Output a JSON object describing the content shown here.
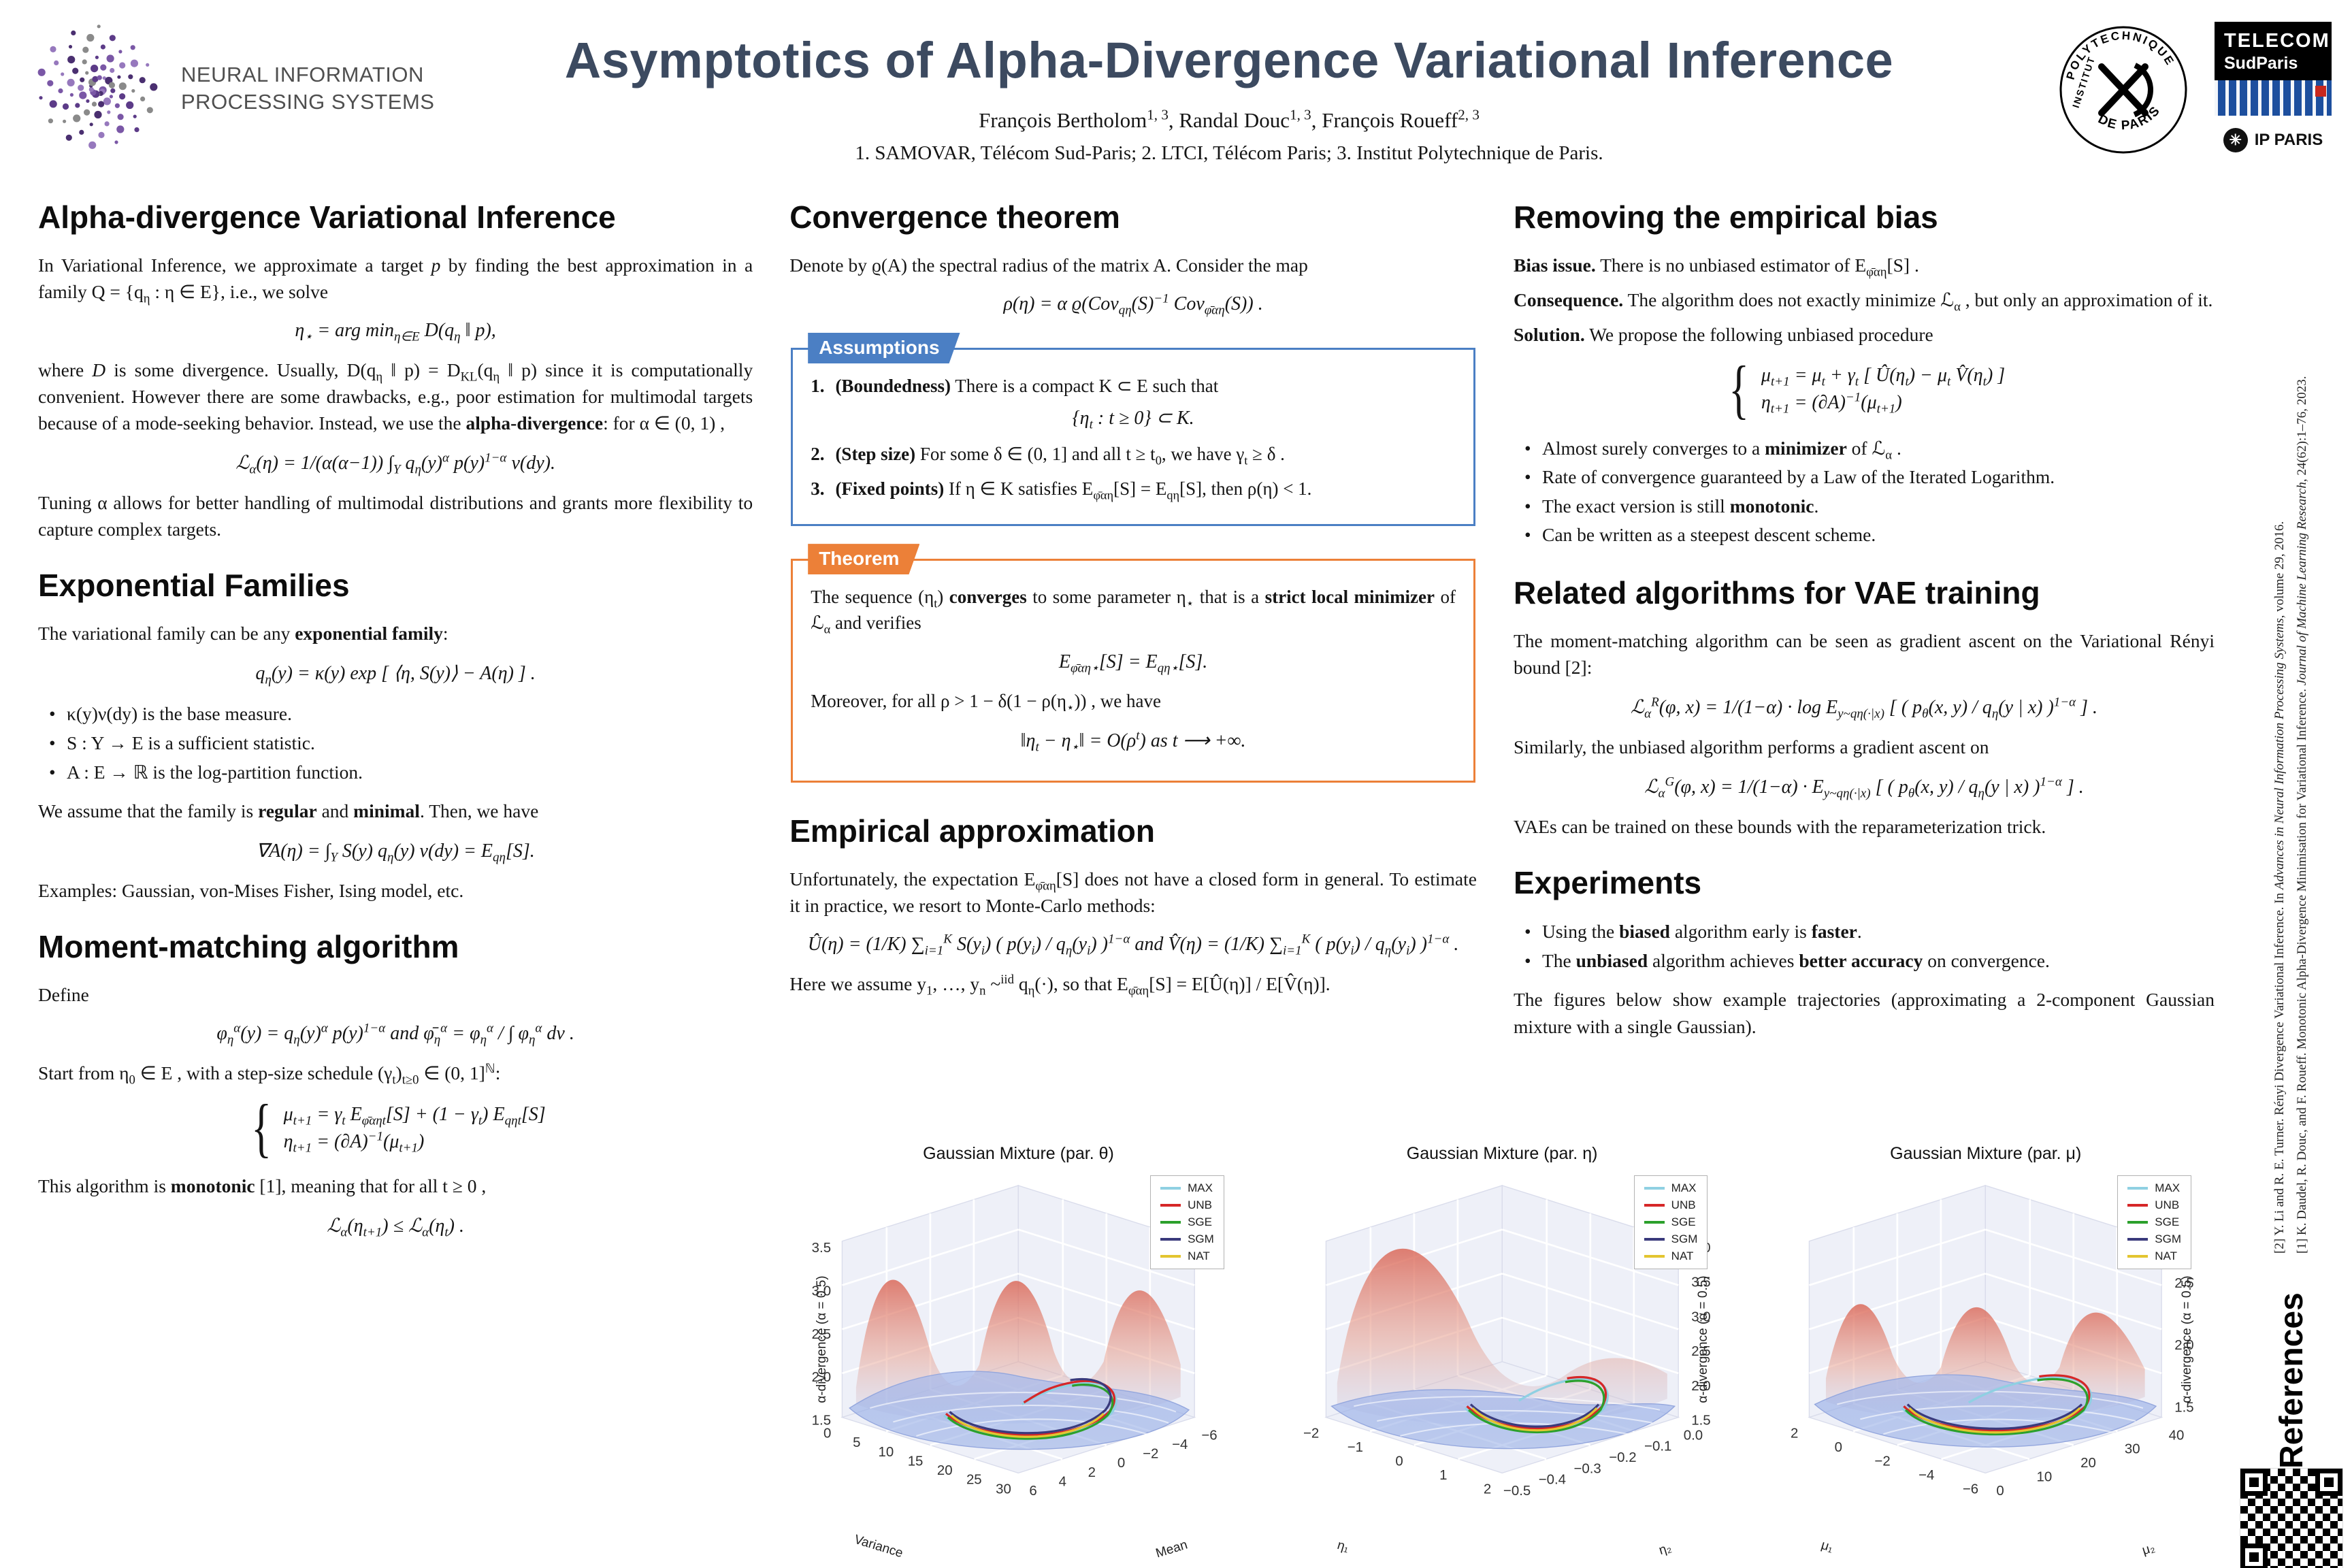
{
  "header": {
    "title": "Asymptotics of Alpha-Divergence Variational Inference",
    "authors": [
      "François Bertholom",
      {
        "t": "1, 3",
        "p": true
      },
      ", Randal Douc",
      {
        "t": "1, 3",
        "p": true
      },
      ", François Roueff",
      {
        "t": "2, 3",
        "p": true
      }
    ],
    "affiliations": "1. SAMOVAR, Télécom Sud-Paris; 2. LTCI, Télécom Paris; 3. Institut Polytechnique de Paris.",
    "neurips": {
      "line1": "NEURAL INFORMATION",
      "line2": "PROCESSING SYSTEMS"
    },
    "poly": {
      "arc": "POLYTECHNIQUE",
      "left": "INSTITUT",
      "bottom": "DE PARIS"
    },
    "telecom": {
      "line1": "TELECOM",
      "line2": "SudParis"
    },
    "ipparis": "IP PARIS",
    "ip_icon_glyph": "✳"
  },
  "col1": {
    "s1": {
      "h": "Alpha-divergence Variational Inference",
      "p1": [
        "In Variational Inference, we approximate a target ",
        {
          "t": "p",
          "i": true
        },
        " by finding the best approximation in a family Q = {q",
        {
          "t": "η",
          "s": true
        },
        " : η ∈ E}, i.e., we solve"
      ],
      "eq1": [
        "η",
        {
          "t": "⋆",
          "s": true
        },
        " = arg min",
        {
          "t": "η∈E",
          "s": true
        },
        " D(q",
        {
          "t": "η",
          "s": true
        },
        " ‖ p),"
      ],
      "p2": [
        "where ",
        {
          "t": "D",
          "i": true
        },
        " is some divergence. Usually,  D(q",
        {
          "t": "η",
          "s": true
        },
        " ‖ p) = D",
        {
          "t": "KL",
          "s": true
        },
        "(q",
        {
          "t": "η",
          "s": true
        },
        " ‖ p)  since it is computationally convenient. However there are some drawbacks, e.g., poor estimation for multimodal targets because of a mode-seeking behavior. Instead, we use the ",
        {
          "t": "alpha-divergence",
          "b": true
        },
        ": for α ∈ (0, 1) ,"
      ],
      "eq2": [
        "ℒ",
        {
          "t": "α",
          "s": true
        },
        "(η) = 1/(α(α−1)) ∫",
        {
          "t": "Y",
          "s": true
        },
        " q",
        {
          "t": "η",
          "s": true
        },
        "(y)",
        {
          "t": "α",
          "p": true
        },
        " p(y)",
        {
          "t": "1−α",
          "p": true
        },
        " ν(dy)."
      ],
      "p3": "Tuning α allows for better handling of multimodal distributions and grants more flexibility to capture complex targets."
    },
    "s2": {
      "h": "Exponential Families",
      "p1": [
        "The variational family can be any ",
        {
          "t": "exponential family",
          "b": true
        },
        ":"
      ],
      "eq1": [
        "q",
        {
          "t": "η",
          "s": true
        },
        "(y) = κ(y) exp [ ⟨η, S(y)⟩ − A(η) ] ."
      ],
      "b1": [
        "κ(y)ν(dy) is the base measure."
      ],
      "b2": [
        "S : Y → E  is a sufficient statistic."
      ],
      "b3": [
        "A : E → ℝ  is the log-partition function."
      ],
      "p2": [
        "We assume that the family is ",
        {
          "t": "regular",
          "b": true
        },
        " and ",
        {
          "t": "minimal",
          "b": true
        },
        ". Then, we have"
      ],
      "eq2": [
        "∇A(η) = ∫",
        {
          "t": "Y",
          "s": true
        },
        " S(y) q",
        {
          "t": "η",
          "s": true
        },
        "(y) ν(dy) = E",
        {
          "t": "qη",
          "s": true
        },
        "[S]."
      ],
      "p3": "Examples: Gaussian, von-Mises Fisher, Ising model, etc."
    },
    "s3": {
      "h": "Moment-matching algorithm",
      "p1": "Define",
      "eq1": [
        "φ",
        {
          "t": "η",
          "s": true
        },
        {
          "t": "α",
          "p": true
        },
        "(y) = q",
        {
          "t": "η",
          "s": true
        },
        "(y)",
        {
          "t": "α",
          "p": true
        },
        " p(y)",
        {
          "t": "1−α",
          "p": true
        },
        "      and      φ̄",
        {
          "t": "η",
          "s": true
        },
        {
          "t": "α",
          "p": true
        },
        " = φ",
        {
          "t": "η",
          "s": true
        },
        {
          "t": "α",
          "p": true
        },
        " / ∫ φ",
        {
          "t": "η",
          "s": true
        },
        {
          "t": "α",
          "p": true
        },
        " dν ."
      ],
      "p2": [
        "Start from η",
        {
          "t": "0",
          "s": true
        },
        " ∈ E , with a step-size schedule (γ",
        {
          "t": "t",
          "s": true
        },
        ")",
        {
          "t": "t≥0",
          "s": true
        },
        " ∈ (0, 1]",
        {
          "t": "ℕ",
          "p": true
        },
        ":"
      ],
      "eq2a": [
        "μ",
        {
          "t": "t+1",
          "s": true
        },
        "  = γ",
        {
          "t": "t",
          "s": true
        },
        " E",
        {
          "t": "φ̄αηt",
          "s": true
        },
        "[S] + (1 − γ",
        {
          "t": "t",
          "s": true
        },
        ") E",
        {
          "t": "qηt",
          "s": true
        },
        "[S]"
      ],
      "eq2b": [
        "η",
        {
          "t": "t+1",
          "s": true
        },
        "  = (∂A)",
        {
          "t": "−1",
          "p": true
        },
        "(μ",
        {
          "t": "t+1",
          "s": true
        },
        ")"
      ],
      "p3": [
        "This algorithm is ",
        {
          "t": "monotonic",
          "b": true
        },
        " [1], meaning that for all t ≥ 0 ,"
      ],
      "eq3": [
        "ℒ",
        {
          "t": "α",
          "s": true
        },
        "(η",
        {
          "t": "t+1",
          "s": true
        },
        ") ≤ ℒ",
        {
          "t": "α",
          "s": true
        },
        "(η",
        {
          "t": "t",
          "s": true
        },
        ") ."
      ]
    }
  },
  "col2": {
    "s1": {
      "h": "Convergence theorem",
      "p1": [
        "Denote by ϱ(A) the spectral radius of the matrix A. Consider the map"
      ],
      "eq1": [
        "ρ(η) = α ϱ(Cov",
        {
          "t": "qη",
          "s": true
        },
        "(S)",
        {
          "t": "−1",
          "p": true
        },
        " Cov",
        {
          "t": "φ̄αη",
          "s": true
        },
        "(S)) ."
      ]
    },
    "assump": {
      "label": "Assumptions",
      "items": [
        {
          "num": "1.",
          "body": [
            {
              "t": "(Boundedness)",
              "b": true
            },
            " There is a compact  K ⊂ E  such that"
          ],
          "eq": [
            "{η",
            {
              "t": "t",
              "s": true
            },
            " :  t ≥ 0} ⊂ K."
          ]
        },
        {
          "num": "2.",
          "body": [
            {
              "t": "(Step size)",
              "b": true
            },
            " For some δ ∈ (0, 1] and all t ≥ t",
            {
              "t": "0",
              "s": true
            },
            ", we have γ",
            {
              "t": "t",
              "s": true
            },
            " ≥ δ ."
          ]
        },
        {
          "num": "3.",
          "body": [
            {
              "t": "(Fixed points)",
              "b": true
            },
            " If  η ∈ K  satisfies E",
            {
              "t": "φ̄αη",
              "s": true
            },
            "[S] = E",
            {
              "t": "qη",
              "s": true
            },
            "[S], then ρ(η) < 1."
          ]
        }
      ]
    },
    "thm": {
      "label": "Theorem",
      "p1": [
        "The sequence (η",
        {
          "t": "t",
          "s": true
        },
        ") ",
        {
          "t": "converges",
          "b": true
        },
        " to some parameter η",
        {
          "t": "⋆",
          "s": true
        },
        "  that is a ",
        {
          "t": "strict local minimizer",
          "b": true
        },
        " of ℒ",
        {
          "t": "α",
          "s": true
        },
        "  and verifies"
      ],
      "eq1": [
        "E",
        {
          "t": "φ̄αη⋆",
          "s": true
        },
        "[S] = E",
        {
          "t": "qη⋆",
          "s": true
        },
        "[S]."
      ],
      "p2": [
        "Moreover, for all ρ > 1 − δ(1 − ρ(η",
        {
          "t": "⋆",
          "s": true
        },
        ")) , we have"
      ],
      "eq2": [
        "‖η",
        {
          "t": "t",
          "s": true
        },
        " − η",
        {
          "t": "⋆",
          "s": true
        },
        "‖ = O(ρ",
        {
          "t": "t",
          "p": true
        },
        ")      as      t ⟶ +∞."
      ]
    },
    "s2": {
      "h": "Empirical approximation",
      "p1": [
        "Unfortunately, the expectation E",
        {
          "t": "φ̄αη",
          "s": true
        },
        "[S] does not have a closed form in general. To estimate it in practice, we resort to Monte-Carlo methods:"
      ],
      "eq1": [
        "Û(η) = (1/K) ∑",
        {
          "t": "i=1",
          "s": true
        },
        {
          "t": "K",
          "p": true
        },
        " S(y",
        {
          "t": "i",
          "s": true
        },
        ") ( p(y",
        {
          "t": "i",
          "s": true
        },
        ") / q",
        {
          "t": "η",
          "s": true
        },
        "(y",
        {
          "t": "i",
          "s": true
        },
        ") )",
        {
          "t": "1−α",
          "p": true
        },
        "    and    V̂(η) = (1/K) ∑",
        {
          "t": "i=1",
          "s": true
        },
        {
          "t": "K",
          "p": true
        },
        " ( p(y",
        {
          "t": "i",
          "s": true
        },
        ") / q",
        {
          "t": "η",
          "s": true
        },
        "(y",
        {
          "t": "i",
          "s": true
        },
        ") )",
        {
          "t": "1−α",
          "p": true
        },
        " ."
      ],
      "p2": [
        "Here we assume  y",
        {
          "t": "1",
          "s": true
        },
        ", …, y",
        {
          "t": "n",
          "s": true
        },
        " ~",
        {
          "t": "iid",
          "p": true
        },
        " q",
        {
          "t": "η",
          "s": true
        },
        "(·), so that E",
        {
          "t": "φ̄αη",
          "s": true
        },
        "[S] = E[Û(η)] / E[V̂(η)]."
      ]
    }
  },
  "col3": {
    "s1": {
      "h": "Removing the empirical bias",
      "p1": [
        {
          "t": "Bias issue.",
          "b": true
        },
        " There is no unbiased estimator of E",
        {
          "t": "φ̄αη",
          "s": true
        },
        "[S] ."
      ],
      "p2": [
        {
          "t": "Consequence.",
          "b": true
        },
        " The algorithm does not exactly minimize ℒ",
        {
          "t": "α",
          "s": true
        },
        " , but only an approximation of it."
      ],
      "p3": [
        {
          "t": "Solution.",
          "b": true
        },
        " We propose the following unbiased procedure"
      ],
      "eq1a": [
        "μ",
        {
          "t": "t+1",
          "s": true
        },
        "  = μ",
        {
          "t": "t",
          "s": true
        },
        " + γ",
        {
          "t": "t",
          "s": true
        },
        " [ Û(η",
        {
          "t": "t",
          "s": true
        },
        ") − μ",
        {
          "t": "t",
          "s": true
        },
        " V̂(η",
        {
          "t": "t",
          "s": true
        },
        ") ]"
      ],
      "eq1b": [
        "η",
        {
          "t": "t+1",
          "s": true
        },
        "  = (∂A)",
        {
          "t": "−1",
          "p": true
        },
        "(μ",
        {
          "t": "t+1",
          "s": true
        },
        ")"
      ],
      "b1": [
        "Almost surely converges to a ",
        {
          "t": "minimizer",
          "b": true
        },
        " of ℒ",
        {
          "t": "α",
          "s": true
        },
        " ."
      ],
      "b2": [
        "Rate of convergence guaranteed by a Law of the Iterated Logarithm."
      ],
      "b3": [
        "The exact version is still ",
        {
          "t": "monotonic",
          "b": true
        },
        "."
      ],
      "b4": [
        "Can be written as a steepest descent scheme."
      ]
    },
    "s2": {
      "h": "Related algorithms for VAE training",
      "p1": "The moment-matching algorithm can be seen as gradient ascent on the Variational Rényi bound [2]:",
      "eq1": [
        "ℒ",
        {
          "t": "α",
          "s": true
        },
        {
          "t": "R",
          "p": true
        },
        "(φ, x) = 1/(1−α) · log E",
        {
          "t": "y~qη(·|x)",
          "s": true
        },
        " [ ( p",
        {
          "t": "θ",
          "s": true
        },
        "(x, y) / q",
        {
          "t": "η",
          "s": true
        },
        "(y | x) )",
        {
          "t": "1−α",
          "p": true
        },
        " ] ."
      ],
      "p2": "Similarly, the unbiased algorithm performs a gradient ascent on",
      "eq2": [
        "ℒ",
        {
          "t": "α",
          "s": true
        },
        {
          "t": "G",
          "p": true
        },
        "(φ, x) = 1/(1−α) · E",
        {
          "t": "y~qη(·|x)",
          "s": true
        },
        " [ ( p",
        {
          "t": "θ",
          "s": true
        },
        "(x, y) / q",
        {
          "t": "η",
          "s": true
        },
        "(y | x) )",
        {
          "t": "1−α",
          "p": true
        },
        " ] ."
      ],
      "p3": "VAEs can be trained on these bounds with the reparameterization trick."
    },
    "s3": {
      "h": "Experiments",
      "b1": [
        "Using the ",
        {
          "t": "biased",
          "b": true
        },
        " algorithm early is ",
        {
          "t": "faster",
          "b": true
        },
        "."
      ],
      "b2": [
        "The ",
        {
          "t": "unbiased",
          "b": true
        },
        " algorithm achieves ",
        {
          "t": "better accuracy",
          "b": true
        },
        " on convergence."
      ],
      "p1": "The figures below show example trajectories (approximating a 2-component Gaussian mixture with a single Gaussian)."
    }
  },
  "rail": {
    "title": "References",
    "ref1": [
      "[1] K. Daudel, R. Douc, and F. Roueff. Monotonic Alpha-Divergence Minimisation for Variational Inference. ",
      {
        "t": "Journal of Machine Learning Research",
        "i": true
      },
      ", 24(62):1–76, 2023."
    ],
    "ref2": [
      "[2] Y. Li and R. E. Turner. Rényi Divergence Variational Inference. In ",
      {
        "t": "Advances in Neural Information Processing Systems",
        "i": true
      },
      ", volume 29, 2016."
    ]
  },
  "chart_data": [
    {
      "type": "surface3d",
      "title": "Gaussian Mixture (par. θ)",
      "left_axis": {
        "label": "Variance",
        "ticks": [
          "0",
          "5",
          "10",
          "15",
          "20",
          "25",
          "30"
        ]
      },
      "right_axis": {
        "label": "Mean",
        "ticks": [
          "6",
          "4",
          "2",
          "0",
          "−2",
          "−4",
          "−6"
        ]
      },
      "z_axis": {
        "label": "α-divergence (α = 0.5)",
        "side": "left",
        "ticks": [
          "1.5",
          "2.0",
          "2.5",
          "3.0",
          "3.5"
        ]
      },
      "legend": [
        {
          "label": "MAX",
          "color": "#8fd0e2"
        },
        {
          "label": "UNB",
          "color": "#d62728"
        },
        {
          "label": "SGE",
          "color": "#2ca02c"
        },
        {
          "label": "SGM",
          "color": "#3a3a7c"
        },
        {
          "label": "NAT",
          "color": "#e3c530"
        }
      ],
      "content": "α-divergence surface over (Mean, Variance) for a 2-component Gaussian mixture target; optimizer trajectories MAX, UNB, SGE, SGM, NAT descend into the central valley"
    },
    {
      "type": "surface3d",
      "title": "Gaussian Mixture (par. η)",
      "left_axis": {
        "label": "η₁",
        "ticks": [
          "−2",
          "−1",
          "0",
          "1",
          "2"
        ]
      },
      "right_axis": {
        "label": "η₂",
        "ticks": [
          "−0.5",
          "−0.4",
          "−0.3",
          "−0.2",
          "−0.1",
          "0.0"
        ]
      },
      "z_axis": {
        "label": "α-divergence (α = 0.5)",
        "side": "right",
        "ticks": [
          "1.5",
          "2.0",
          "2.5",
          "3.0",
          "3.5",
          "4.0"
        ]
      },
      "legend": [
        {
          "label": "MAX",
          "color": "#8fd0e2"
        },
        {
          "label": "UNB",
          "color": "#d62728"
        },
        {
          "label": "SGE",
          "color": "#2ca02c"
        },
        {
          "label": "SGM",
          "color": "#3a3a7c"
        },
        {
          "label": "NAT",
          "color": "#e3c530"
        }
      ],
      "content": "α-divergence surface over natural parameters (η₁, η₂); optimizer trajectories MAX, UNB, SGE, SGM, NAT"
    },
    {
      "type": "surface3d",
      "title": "Gaussian Mixture (par. μ)",
      "left_axis": {
        "label": "μ₁",
        "ticks": [
          "2",
          "0",
          "−2",
          "−4",
          "−6"
        ]
      },
      "right_axis": {
        "label": "μ₂",
        "ticks": [
          "0",
          "10",
          "20",
          "30",
          "40"
        ]
      },
      "z_axis": {
        "label": "α-divergence (α = 0.5)",
        "side": "right",
        "ticks": [
          "1.5",
          "2.0",
          "2.5"
        ]
      },
      "legend": [
        {
          "label": "MAX",
          "color": "#8fd0e2"
        },
        {
          "label": "UNB",
          "color": "#d62728"
        },
        {
          "label": "SGE",
          "color": "#2ca02c"
        },
        {
          "label": "SGM",
          "color": "#3a3a7c"
        },
        {
          "label": "NAT",
          "color": "#e3c530"
        }
      ],
      "content": "α-divergence surface over mean parameters (μ₁, μ₂); optimizer trajectories MAX, UNB, SGE, SGM, NAT loop around the minimum"
    }
  ]
}
